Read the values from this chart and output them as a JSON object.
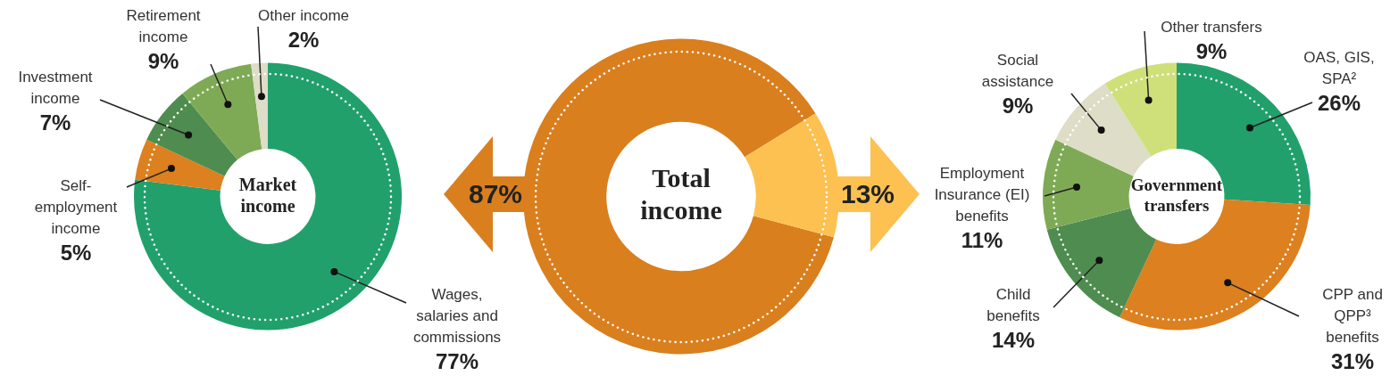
{
  "chart_data": [
    {
      "type": "donut",
      "title": "Market income",
      "categories": [
        "Wages, salaries and commissions",
        "Self-employment income",
        "Investment income",
        "Retirement income",
        "Other income"
      ],
      "values": [
        77,
        5,
        7,
        9,
        2
      ],
      "colors": [
        "#21a06c",
        "#dc8020",
        "#4f8c4f",
        "#7faa55",
        "#ddddc8"
      ],
      "value_labels": [
        "77%",
        "5%",
        "7%",
        "9%",
        "2%"
      ]
    },
    {
      "type": "donut",
      "title": "Total income",
      "categories": [
        null,
        null
      ],
      "values": [
        87,
        13
      ],
      "colors": [
        "#d97f1e",
        "#fdc152"
      ],
      "value_labels": [
        "87%",
        "13%"
      ]
    },
    {
      "type": "donut",
      "title": "Government transfers",
      "categories": [
        "OAS, GIS, SPA²",
        "CPP and QPP³ benefits",
        "Child benefits",
        "Employment Insurance (EI) benefits",
        "Social assistance",
        "Other transfers"
      ],
      "values": [
        26,
        31,
        14,
        11,
        9,
        9
      ],
      "colors": [
        "#21a06c",
        "#dc8020",
        "#4f8c4f",
        "#7faa55",
        "#ddddc8",
        "#cfe07a"
      ],
      "value_labels": [
        "26%",
        "31%",
        "14%",
        "11%",
        "9%",
        "9%"
      ]
    }
  ]
}
